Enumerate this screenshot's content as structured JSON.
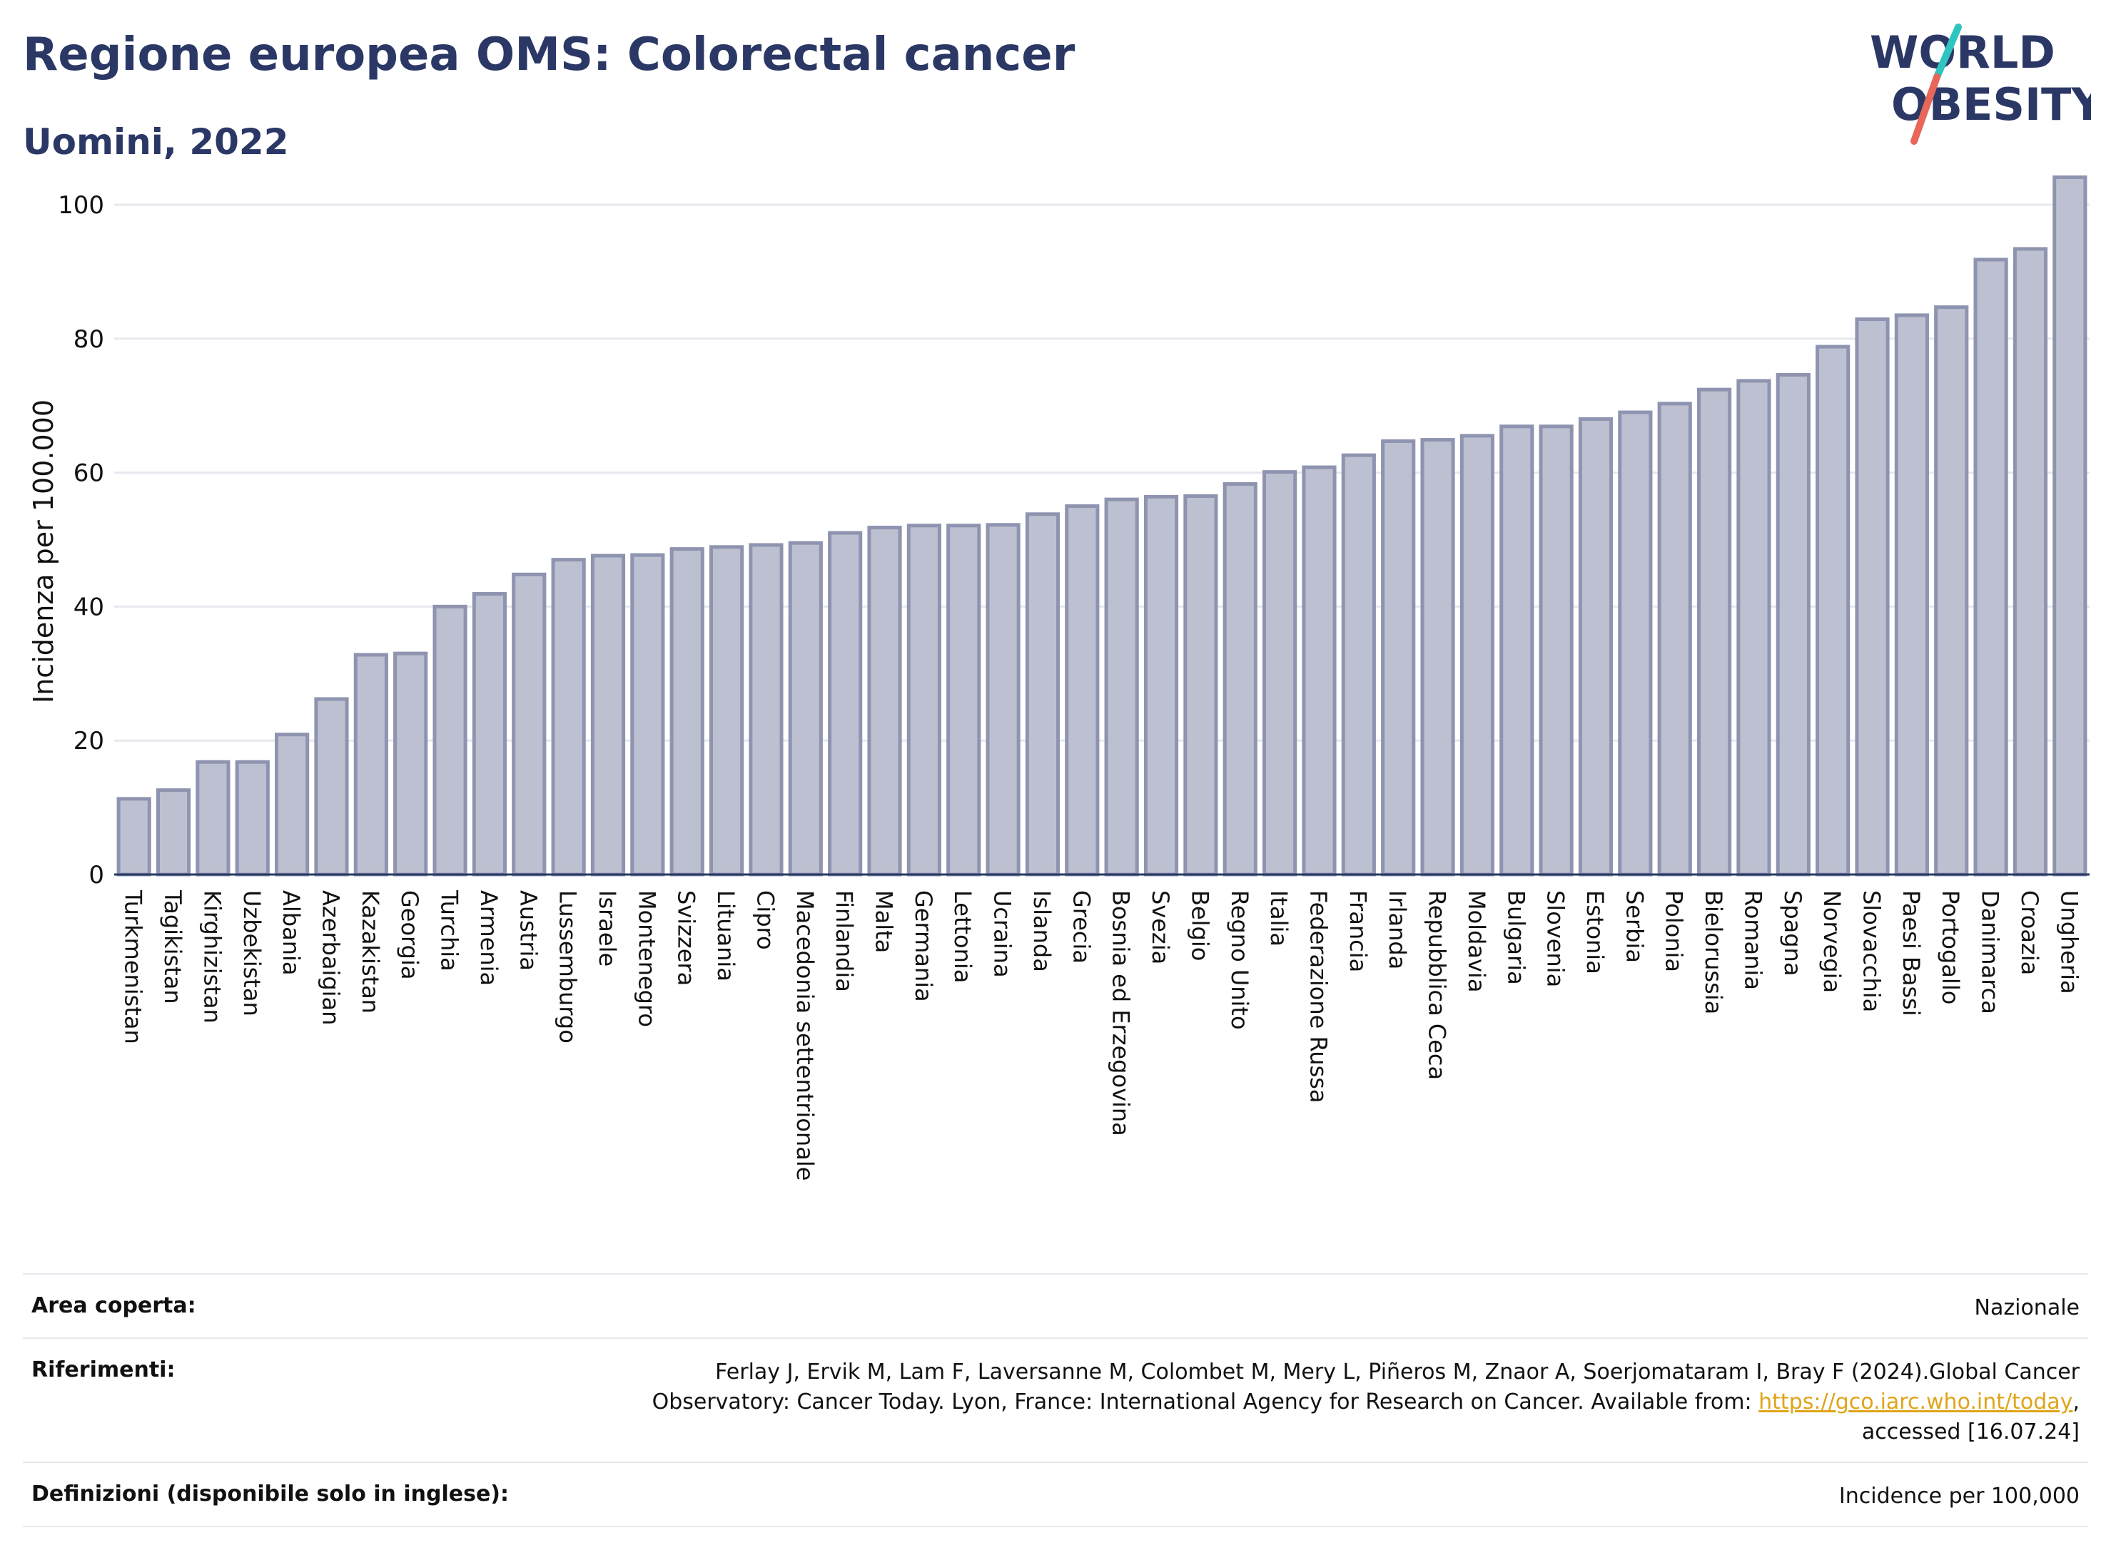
{
  "header": {
    "title": "Regione europea OMS: Colorectal cancer",
    "subtitle": "Uomini, 2022"
  },
  "logo": {
    "line1": "WORLD",
    "line2": "OBESITY",
    "colors": {
      "text": "#2b3866",
      "slash_top": "#2ec4c0",
      "slash_bottom": "#e8665a"
    }
  },
  "chart_data": {
    "type": "bar",
    "title": "",
    "xlabel": "",
    "ylabel": "Incidenza per 100.000",
    "ylim": [
      0,
      105
    ],
    "yticks": [
      0,
      20,
      40,
      60,
      80,
      100
    ],
    "grid": true,
    "legend": "none",
    "colors": {
      "bar_fill": "#bcc0d0",
      "bar_stroke": "#8e94b0",
      "grid": "#e6e8ee",
      "axis": "#2b3866"
    },
    "categories": [
      "Turkmenistan",
      "Tagikistan",
      "Kirghizistan",
      "Uzbekistan",
      "Albania",
      "Azerbaigian",
      "Kazakistan",
      "Georgia",
      "Turchia",
      "Armenia",
      "Austria",
      "Lussemburgo",
      "Israele",
      "Montenegro",
      "Svizzera",
      "Lituania",
      "Cipro",
      "Macedonia settentrionale",
      "Finlandia",
      "Malta",
      "Germania",
      "Lettonia",
      "Ucraina",
      "Islanda",
      "Grecia",
      "Bosnia ed Erzegovina",
      "Svezia",
      "Belgio",
      "Regno Unito",
      "Italia",
      "Federazione Russa",
      "Francia",
      "Irlanda",
      "Repubblica Ceca",
      "Moldavia",
      "Bulgaria",
      "Slovenia",
      "Estonia",
      "Serbia",
      "Polonia",
      "Bielorussia",
      "Romania",
      "Spagna",
      "Norvegia",
      "Slovacchia",
      "Paesi Bassi",
      "Portogallo",
      "Danimarca",
      "Croazia",
      "Ungheria"
    ],
    "values": [
      11.3,
      12.6,
      16.8,
      16.8,
      20.9,
      26.2,
      32.8,
      33.0,
      40.0,
      41.9,
      44.8,
      47.0,
      47.6,
      47.7,
      48.6,
      48.9,
      49.2,
      49.5,
      51.0,
      51.8,
      52.1,
      52.1,
      52.2,
      53.8,
      55.0,
      56.0,
      56.4,
      56.5,
      58.3,
      60.1,
      60.8,
      62.6,
      64.7,
      64.9,
      65.5,
      66.9,
      66.9,
      68.0,
      69.0,
      70.3,
      72.4,
      73.7,
      74.6,
      78.8,
      82.9,
      83.5,
      84.7,
      91.8,
      93.4,
      104.1
    ]
  },
  "meta": {
    "rows": [
      {
        "label": "Area coperta:",
        "value": "Nazionale"
      },
      {
        "label": "Riferimenti:",
        "value_line1": "Ferlay J, Ervik M, Lam F, Laversanne M, Colombet M, Mery L, Piñeros M, Znaor A, Soerjomataram I, Bray F (2024).Global Cancer",
        "value_line2_pre": "Observatory: Cancer Today. Lyon, France: International Agency for Research on Cancer. Available from: ",
        "value_link": "https://gco.iarc.who.int/today",
        "value_line2_post": ",",
        "value_line3": "accessed [16.07.24]"
      },
      {
        "label": "Definizioni (disponibile solo in inglese):",
        "value": "Incidence per 100,000"
      }
    ]
  }
}
